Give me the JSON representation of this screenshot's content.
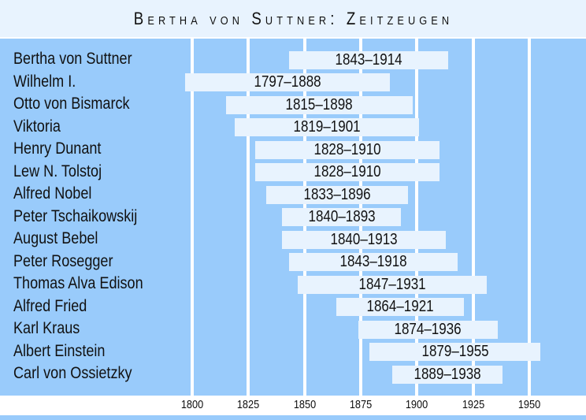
{
  "chart_data": {
    "type": "timeline",
    "title": "Bertha von Suttner: Zeitzeugen",
    "xlim": [
      1797,
      1965
    ],
    "x_ticks": [
      1800,
      1825,
      1850,
      1875,
      1900,
      1925,
      1950
    ],
    "grid": true,
    "colors": {
      "panel": "#99cbfb",
      "bar": "#e8f3fe",
      "grid": "#ffffff"
    },
    "rows": [
      {
        "name": "Bertha von Suttner",
        "start": 1843,
        "end": 1914,
        "label": "1843–1914"
      },
      {
        "name": "Wilhelm I.",
        "start": 1797,
        "end": 1888,
        "label": "1797–1888"
      },
      {
        "name": "Otto von Bismarck",
        "start": 1815,
        "end": 1898,
        "label": "1815–1898"
      },
      {
        "name": "Viktoria",
        "start": 1819,
        "end": 1901,
        "label": "1819–1901"
      },
      {
        "name": "Henry Dunant",
        "start": 1828,
        "end": 1910,
        "label": "1828–1910"
      },
      {
        "name": "Lew N. Tolstoj",
        "start": 1828,
        "end": 1910,
        "label": "1828–1910"
      },
      {
        "name": "Alfred Nobel",
        "start": 1833,
        "end": 1896,
        "label": "1833–1896"
      },
      {
        "name": "Peter Tschaikowskij",
        "start": 1840,
        "end": 1893,
        "label": "1840–1893"
      },
      {
        "name": "August Bebel",
        "start": 1840,
        "end": 1913,
        "label": "1840–1913"
      },
      {
        "name": "Peter Rosegger",
        "start": 1843,
        "end": 1918,
        "label": "1843–1918"
      },
      {
        "name": "Thomas Alva Edison",
        "start": 1847,
        "end": 1931,
        "label": "1847–1931"
      },
      {
        "name": "Alfred Fried",
        "start": 1864,
        "end": 1921,
        "label": "1864–1921"
      },
      {
        "name": "Karl Kraus",
        "start": 1874,
        "end": 1936,
        "label": "1874–1936"
      },
      {
        "name": "Albert Einstein",
        "start": 1879,
        "end": 1955,
        "label": "1879–1955"
      },
      {
        "name": "Carl von Ossietzky",
        "start": 1889,
        "end": 1938,
        "label": "1889–1938"
      }
    ]
  }
}
